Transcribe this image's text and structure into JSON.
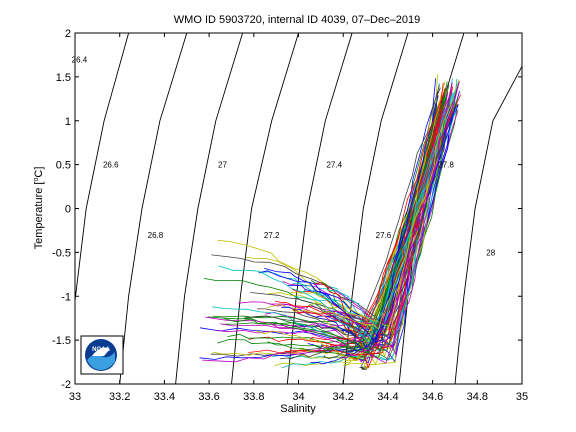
{
  "chart_data": {
    "type": "line",
    "title": "WMO ID 5903720, internal ID 4039, 07–Dec–2019",
    "xlabel": "Salinity",
    "ylabel": "Temperature [°C]",
    "ylabel_main": "Temperature [",
    "ylabel_unit_sup": "o",
    "ylabel_unit_tail": "C]",
    "xlim": [
      33,
      35
    ],
    "ylim": [
      -2,
      2
    ],
    "xticks": [
      33,
      33.2,
      33.4,
      33.6,
      33.8,
      34,
      34.2,
      34.4,
      34.6,
      34.8,
      35
    ],
    "xtick_labels": [
      "33",
      "33.2",
      "33.4",
      "33.6",
      "33.8",
      "34",
      "34.2",
      "34.4",
      "34.6",
      "34.8",
      "35"
    ],
    "yticks": [
      -2,
      -1.5,
      -1,
      -0.5,
      0,
      0.5,
      1,
      1.5,
      2
    ],
    "ytick_labels": [
      "-2",
      "-1.5",
      "-1",
      "-0.5",
      "0",
      "0.5",
      "1",
      "1.5",
      "2"
    ],
    "density_contours": [
      {
        "label": "26.4",
        "points": [
          [
            32.92,
            2.0
          ],
          [
            32.985,
            1.55
          ],
          [
            33.0,
            1.5
          ]
        ],
        "label_at": [
          33.02,
          1.7
        ]
      },
      {
        "label": "26.6",
        "points": [
          [
            33.24,
            2.0
          ],
          [
            33.13,
            1.0
          ],
          [
            33.05,
            0.0
          ],
          [
            33.0,
            -1.05
          ]
        ],
        "label_at": [
          33.16,
          0.5
        ]
      },
      {
        "label": "26.8",
        "points": [
          [
            33.5,
            2.0
          ],
          [
            33.38,
            1.0
          ],
          [
            33.3,
            0.0
          ],
          [
            33.24,
            -1.0
          ],
          [
            33.2,
            -2.0
          ]
        ],
        "label_at": [
          33.36,
          -0.3
        ]
      },
      {
        "label": "27",
        "points": [
          [
            33.75,
            2.0
          ],
          [
            33.63,
            1.0
          ],
          [
            33.55,
            0.0
          ],
          [
            33.49,
            -1.0
          ],
          [
            33.45,
            -2.0
          ]
        ],
        "label_at": [
          33.66,
          0.5
        ]
      },
      {
        "label": "27.2",
        "points": [
          [
            34.0,
            2.0
          ],
          [
            33.88,
            1.0
          ],
          [
            33.79,
            0.0
          ],
          [
            33.74,
            -1.0
          ],
          [
            33.7,
            -2.0
          ]
        ],
        "label_at": [
          33.88,
          -0.3
        ]
      },
      {
        "label": "27.4",
        "points": [
          [
            34.24,
            2.0
          ],
          [
            34.12,
            1.0
          ],
          [
            34.04,
            0.0
          ],
          [
            33.99,
            -1.0
          ],
          [
            33.95,
            -2.0
          ]
        ],
        "label_at": [
          34.16,
          0.5
        ]
      },
      {
        "label": "27.6",
        "points": [
          [
            34.49,
            2.0
          ],
          [
            34.37,
            1.0
          ],
          [
            34.29,
            0.0
          ],
          [
            34.24,
            -1.0
          ],
          [
            34.2,
            -2.0
          ]
        ],
        "label_at": [
          34.38,
          -0.3
        ]
      },
      {
        "label": "27.8",
        "points": [
          [
            34.74,
            2.0
          ],
          [
            34.62,
            1.0
          ],
          [
            34.54,
            0.0
          ],
          [
            34.49,
            -1.0
          ],
          [
            34.45,
            -2.0
          ]
        ],
        "label_at": [
          34.66,
          0.5
        ]
      },
      {
        "label": "28",
        "points": [
          [
            35.0,
            1.62
          ],
          [
            34.87,
            1.0
          ],
          [
            34.79,
            0.0
          ],
          [
            34.74,
            -1.0
          ],
          [
            34.7,
            -2.0
          ]
        ],
        "label_at": [
          34.86,
          -0.5
        ]
      }
    ],
    "profile_colors": [
      "#0000ff",
      "#008000",
      "#ff0000",
      "#00bfbf",
      "#bf00bf",
      "#bfbf00",
      "#3f3f3f"
    ],
    "profile_count": 90,
    "salinity_range": [
      33.5,
      34.75
    ],
    "temperature_range": [
      -1.85,
      1.52
    ],
    "logo": {
      "text": "NOAA"
    }
  }
}
